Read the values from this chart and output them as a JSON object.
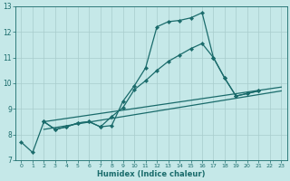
{
  "title": "",
  "xlabel": "Humidex (Indice chaleur)",
  "background_color": "#c5e8e8",
  "grid_color": "#a8cccc",
  "line_color": "#1a6b6b",
  "xlim": [
    -0.5,
    23.5
  ],
  "ylim": [
    7,
    13
  ],
  "yticks": [
    7,
    8,
    9,
    10,
    11,
    12,
    13
  ],
  "xticks": [
    0,
    1,
    2,
    3,
    4,
    5,
    6,
    7,
    8,
    9,
    10,
    11,
    12,
    13,
    14,
    15,
    16,
    17,
    18,
    19,
    20,
    21,
    22,
    23
  ],
  "line1_x": [
    0,
    1,
    2,
    3,
    4,
    5,
    6,
    7,
    8,
    9,
    10,
    11,
    12,
    13,
    14,
    15,
    16,
    17,
    18,
    19,
    20,
    21
  ],
  "line1_y": [
    7.7,
    7.3,
    8.5,
    8.2,
    8.3,
    8.45,
    8.5,
    8.3,
    8.35,
    9.3,
    9.9,
    10.6,
    12.2,
    12.4,
    12.45,
    12.55,
    12.75,
    11.0,
    10.2,
    9.5,
    9.6,
    9.7
  ],
  "line2_x": [
    2,
    3,
    4,
    5,
    6,
    7,
    8,
    9,
    10,
    11,
    12,
    13,
    14,
    15,
    16,
    17,
    18,
    19,
    20,
    21
  ],
  "line2_y": [
    8.5,
    8.2,
    8.3,
    8.45,
    8.5,
    8.3,
    8.7,
    9.05,
    9.75,
    10.1,
    10.5,
    10.85,
    11.1,
    11.35,
    11.55,
    11.0,
    10.2,
    9.5,
    9.6,
    9.7
  ],
  "reg1_x0": 2,
  "reg1_y0": 8.5,
  "reg1_x1": 23,
  "reg1_y1": 9.85,
  "reg2_x0": 2,
  "reg2_y0": 8.2,
  "reg2_x1": 23,
  "reg2_y1": 9.7,
  "marker_size": 2.2,
  "line_width": 0.9
}
